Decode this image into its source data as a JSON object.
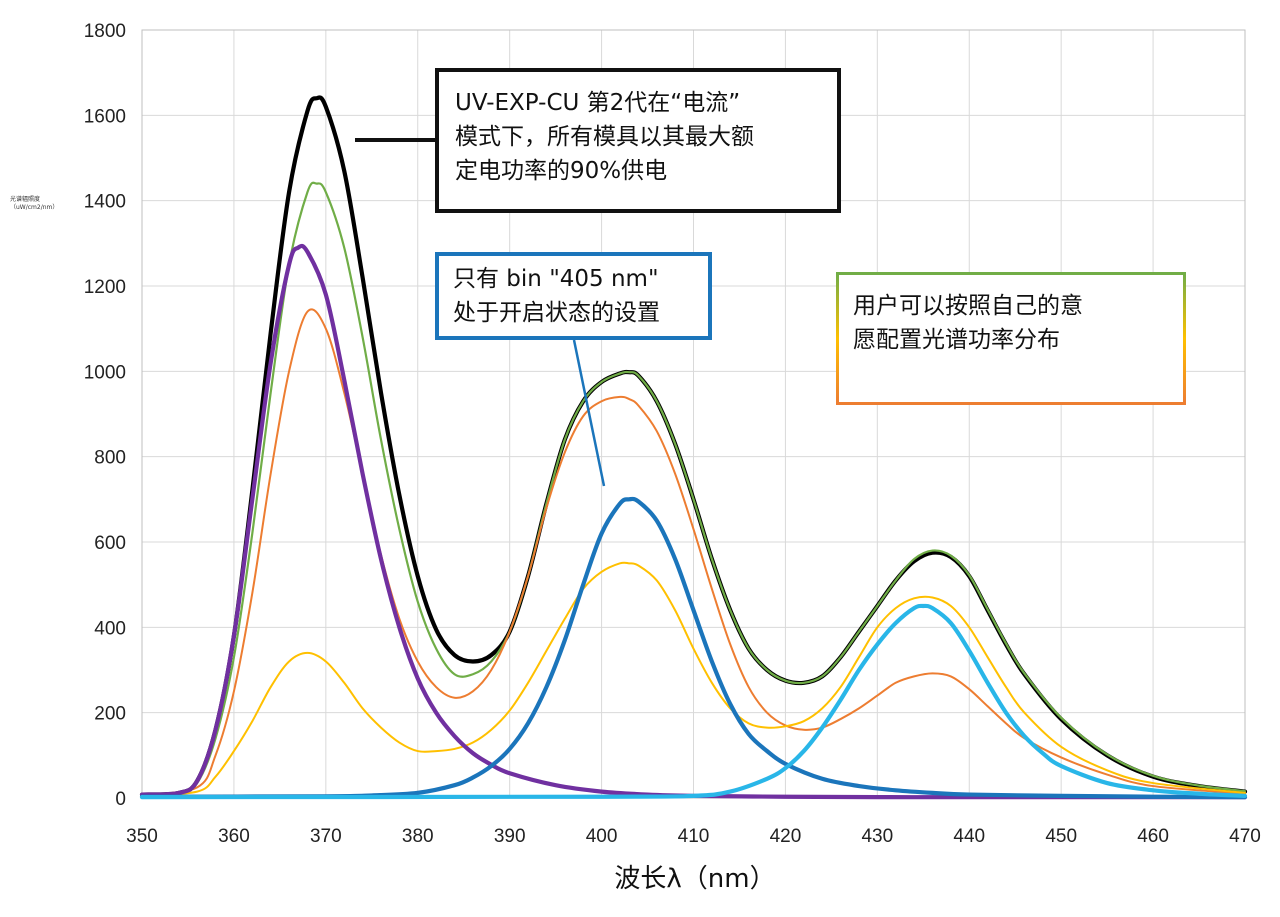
{
  "chart_data": {
    "type": "line",
    "xlabel": "波长λ（nm）",
    "ylabel": "光谱辐照度（uW/cm2/nm）",
    "xlim": [
      350,
      470
    ],
    "ylim": [
      0,
      1800
    ],
    "xticks": [
      350,
      360,
      370,
      380,
      390,
      400,
      410,
      420,
      430,
      440,
      450,
      460,
      470
    ],
    "yticks": [
      0,
      200,
      400,
      600,
      800,
      1000,
      1200,
      1400,
      1600,
      1800
    ],
    "grid": true,
    "series": [
      {
        "color": "#000000",
        "x": [
          350,
          354,
          356,
          358,
          360,
          362,
          364,
          366,
          368,
          369,
          370,
          372,
          374,
          376,
          378,
          380,
          382,
          384,
          386,
          388,
          390,
          392,
          394,
          396,
          398,
          400,
          402,
          403,
          404,
          406,
          408,
          410,
          412,
          414,
          416,
          418,
          420,
          422,
          424,
          426,
          428,
          430,
          432,
          434,
          436,
          438,
          440,
          442,
          444,
          446,
          450,
          455,
          460,
          465,
          470
        ],
        "y": [
          8,
          12,
          40,
          160,
          380,
          720,
          1090,
          1420,
          1610,
          1640,
          1620,
          1470,
          1220,
          950,
          710,
          520,
          395,
          335,
          320,
          335,
          390,
          520,
          690,
          840,
          930,
          975,
          995,
          998,
          990,
          930,
          830,
          700,
          560,
          440,
          350,
          300,
          275,
          270,
          285,
          330,
          390,
          450,
          510,
          555,
          575,
          565,
          520,
          440,
          360,
          290,
          185,
          100,
          50,
          28,
          15
        ]
      },
      {
        "color": "#70ad47",
        "x": [
          350,
          354,
          356,
          358,
          360,
          362,
          364,
          366,
          368,
          369,
          370,
          372,
          374,
          376,
          378,
          380,
          382,
          384,
          386,
          388,
          390,
          392,
          394,
          396,
          398,
          400,
          402,
          403,
          404,
          406,
          408,
          410,
          412,
          414,
          416,
          418,
          420,
          422,
          424,
          426,
          428,
          430,
          432,
          434,
          436,
          438,
          440,
          442,
          444,
          446,
          450,
          455,
          460,
          465,
          470
        ],
        "y": [
          8,
          12,
          35,
          140,
          330,
          620,
          950,
          1250,
          1420,
          1440,
          1420,
          1290,
          1080,
          840,
          630,
          460,
          350,
          290,
          290,
          320,
          390,
          520,
          690,
          840,
          930,
          975,
          995,
          998,
          990,
          930,
          830,
          700,
          560,
          440,
          350,
          300,
          275,
          270,
          285,
          330,
          390,
          450,
          510,
          560,
          580,
          568,
          522,
          442,
          362,
          292,
          188,
          102,
          52,
          29,
          16
        ]
      },
      {
        "color": "#ed7d31",
        "x": [
          350,
          356,
          358,
          360,
          362,
          364,
          366,
          368,
          370,
          372,
          374,
          376,
          378,
          380,
          382,
          384,
          386,
          388,
          390,
          392,
          394,
          396,
          398,
          400,
          402,
          403,
          404,
          406,
          408,
          410,
          412,
          414,
          416,
          418,
          420,
          422,
          424,
          426,
          428,
          430,
          432,
          434,
          436,
          438,
          440,
          442,
          444,
          446,
          450,
          455,
          460,
          470
        ],
        "y": [
          6,
          25,
          100,
          250,
          480,
          760,
          1000,
          1140,
          1100,
          950,
          760,
          570,
          420,
          320,
          260,
          235,
          250,
          300,
          390,
          520,
          680,
          810,
          895,
          930,
          940,
          935,
          920,
          860,
          760,
          630,
          490,
          360,
          260,
          200,
          170,
          160,
          165,
          185,
          210,
          240,
          270,
          285,
          292,
          285,
          255,
          215,
          175,
          140,
          95,
          55,
          28,
          10
        ]
      },
      {
        "color": "#ffc000",
        "x": [
          350,
          356,
          358,
          360,
          362,
          364,
          366,
          368,
          370,
          372,
          374,
          376,
          378,
          380,
          382,
          384,
          386,
          388,
          390,
          392,
          394,
          396,
          398,
          400,
          402,
          403,
          404,
          406,
          408,
          410,
          412,
          414,
          416,
          418,
          420,
          422,
          424,
          426,
          428,
          430,
          432,
          434,
          436,
          438,
          440,
          442,
          444,
          446,
          450,
          455,
          460,
          470
        ],
        "y": [
          6,
          15,
          50,
          110,
          180,
          260,
          320,
          340,
          320,
          270,
          210,
          165,
          130,
          110,
          110,
          115,
          130,
          160,
          205,
          270,
          345,
          420,
          490,
          530,
          550,
          550,
          545,
          510,
          440,
          350,
          270,
          210,
          175,
          165,
          168,
          180,
          210,
          260,
          330,
          400,
          445,
          468,
          470,
          450,
          400,
          330,
          260,
          200,
          120,
          65,
          35,
          12
        ]
      },
      {
        "color": "#7030a0",
        "x": [
          350,
          354,
          356,
          358,
          360,
          362,
          364,
          366,
          367,
          368,
          370,
          372,
          374,
          376,
          378,
          380,
          382,
          384,
          386,
          388,
          390,
          395,
          400,
          405,
          410,
          420,
          430,
          440,
          450,
          460,
          470
        ],
        "y": [
          8,
          12,
          40,
          160,
          380,
          700,
          1020,
          1250,
          1290,
          1280,
          1180,
          980,
          760,
          560,
          400,
          280,
          200,
          145,
          105,
          78,
          58,
          30,
          15,
          8,
          5,
          3,
          2,
          2,
          2,
          2,
          2
        ]
      },
      {
        "color": "#1b75bb",
        "x": [
          350,
          370,
          375,
          380,
          384,
          386,
          388,
          390,
          392,
          394,
          396,
          398,
          400,
          402,
          403,
          404,
          406,
          408,
          410,
          412,
          414,
          416,
          418,
          420,
          424,
          428,
          432,
          436,
          440,
          450,
          460,
          470
        ],
        "y": [
          3,
          4,
          6,
          12,
          30,
          48,
          75,
          115,
          175,
          260,
          370,
          500,
          620,
          690,
          700,
          695,
          650,
          560,
          440,
          320,
          220,
          150,
          110,
          80,
          45,
          28,
          18,
          12,
          8,
          5,
          3,
          2
        ]
      },
      {
        "color": "#29b6e8",
        "x": [
          350,
          400,
          410,
          414,
          418,
          420,
          422,
          424,
          426,
          428,
          430,
          432,
          434,
          435,
          436,
          438,
          440,
          442,
          444,
          446,
          448,
          450,
          455,
          460,
          465,
          470
        ],
        "y": [
          2,
          3,
          5,
          15,
          45,
          70,
          110,
          165,
          230,
          300,
          360,
          410,
          445,
          450,
          445,
          410,
          345,
          270,
          200,
          145,
          105,
          75,
          35,
          18,
          10,
          5
        ]
      }
    ]
  },
  "annotations": {
    "black": {
      "lines": [
        "UV-EXP-CU 第2代在“电流”",
        "模式下，所有模具以其最大额",
        "定电功率的90%供电"
      ]
    },
    "blue": {
      "lines": [
        "只有 bin \"405 nm\"",
        "处于开启状态的设置"
      ]
    },
    "multi": {
      "lines": [
        "用户可以按照自己的意",
        "愿配置光谱功率分布"
      ]
    }
  }
}
